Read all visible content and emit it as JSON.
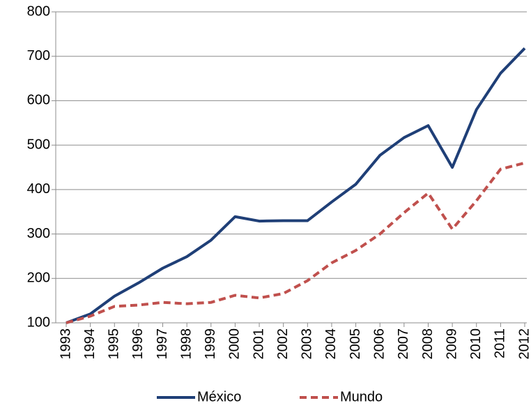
{
  "chart_data": {
    "type": "line",
    "categories": [
      "1993",
      "1994",
      "1995",
      "1996",
      "1997",
      "1998",
      "1999",
      "2000",
      "2001",
      "2002",
      "2003",
      "2004",
      "2005",
      "2006",
      "2007",
      "2008",
      "2009",
      "2010",
      "2011",
      "2012"
    ],
    "series": [
      {
        "name": "México",
        "color": "#1f3f77",
        "dash": false,
        "values": [
          100,
          120,
          160,
          190,
          223,
          249,
          286,
          339,
          329,
          330,
          330,
          372,
          412,
          477,
          517,
          544,
          450,
          580,
          662,
          718
        ]
      },
      {
        "name": "Mundo",
        "color": "#c0504d",
        "dash": true,
        "values": [
          100,
          115,
          137,
          140,
          146,
          143,
          146,
          162,
          156,
          166,
          195,
          235,
          263,
          300,
          348,
          392,
          311,
          375,
          446,
          460
        ]
      }
    ],
    "ylim": [
      100,
      800
    ],
    "yticks": [
      100,
      200,
      300,
      400,
      500,
      600,
      700,
      800
    ],
    "grid": true,
    "legend": "bottom"
  }
}
